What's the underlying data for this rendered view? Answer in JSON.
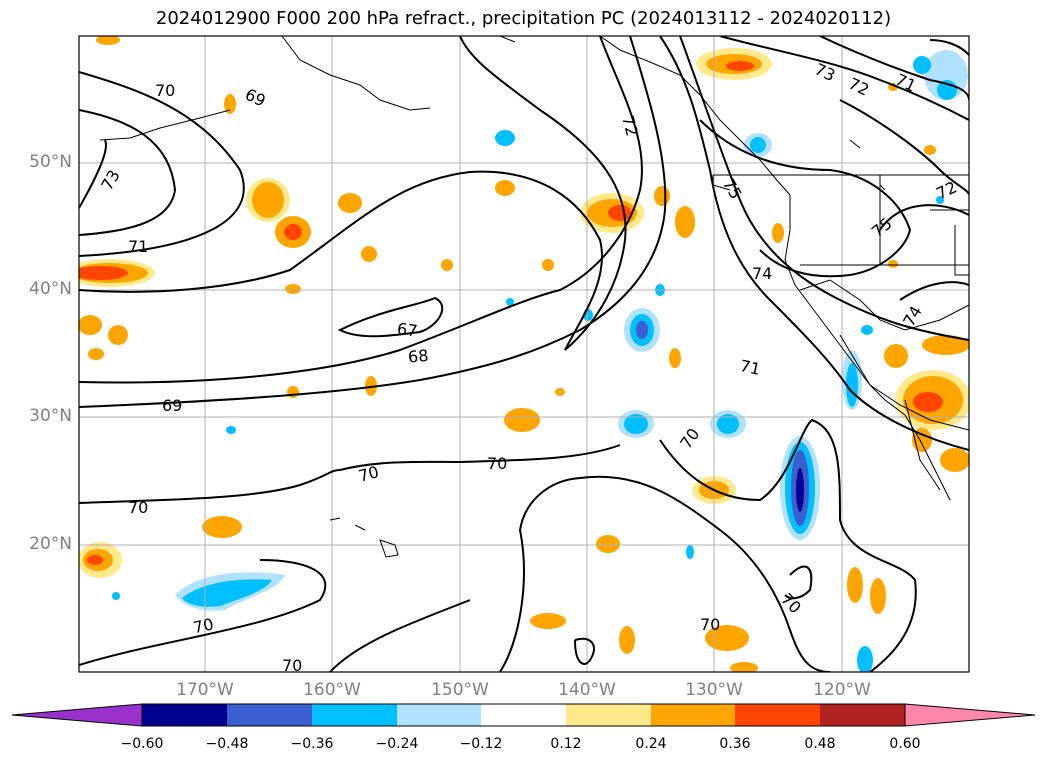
{
  "title": "2024012900 F000 200 hPa refract., precipitation PC (2024013112 - 2024020112)",
  "lat_labels": [
    "50°N",
    "40°N",
    "30°N",
    "20°N"
  ],
  "lon_labels": [
    "170°W",
    "160°W",
    "150°W",
    "140°W",
    "130°W",
    "120°W"
  ],
  "contour_labels": [
    "70",
    "69",
    "73",
    "71",
    "67",
    "68",
    "69",
    "70",
    "70",
    "70",
    "70",
    "70",
    "72",
    "75",
    "74",
    "71",
    "70",
    "70",
    "73",
    "72",
    "71",
    "72",
    "75",
    "74",
    "70"
  ],
  "colorbar": {
    "ticks": [
      "−0.60",
      "−0.48",
      "−0.36",
      "−0.24",
      "−0.12",
      "0.12",
      "0.24",
      "0.36",
      "0.48",
      "0.60"
    ],
    "colors": [
      "#9932cc",
      "#000090",
      "#3a5fd0",
      "#00bfff",
      "#b0e2ff",
      "#ffffff",
      "#ffe98a",
      "#ffa500",
      "#ff4500",
      "#b22222",
      "#ff88aa"
    ]
  }
}
